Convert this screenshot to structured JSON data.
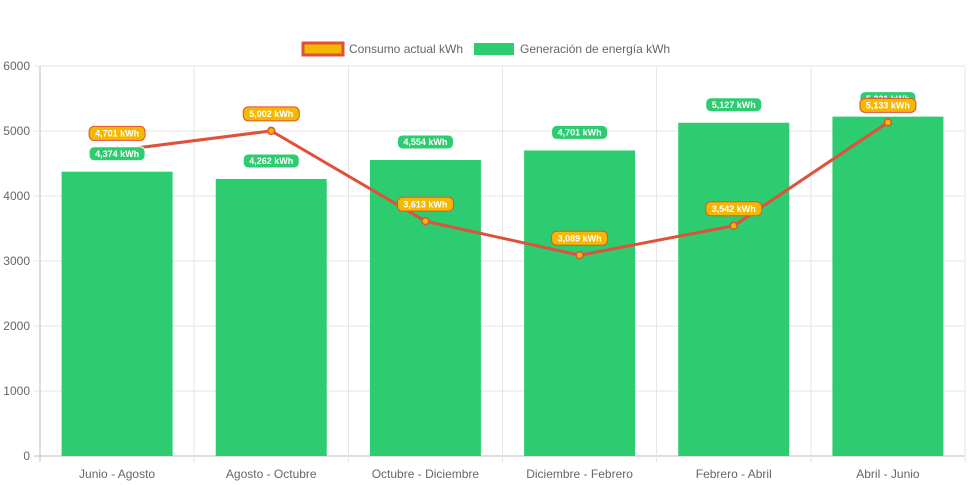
{
  "chart_data": {
    "type": "bar",
    "categories": [
      "Junio - Agosto",
      "Agosto - Octubre",
      "Octubre - Diciembre",
      "Diciembre - Febrero",
      "Febrero - Abril",
      "Abril - Junio"
    ],
    "series": [
      {
        "name": "Consumo actual kWh",
        "type": "line",
        "values": [
          4701,
          5002,
          3613,
          3089,
          3542,
          5133
        ],
        "labels": [
          "4,701 kWh",
          "5,002 kWh",
          "3,613 kWh",
          "3,089 kWh",
          "3,542 kWh",
          "5,133 kWh"
        ],
        "color": "#e0503a",
        "label_bg": "#f5b800"
      },
      {
        "name": "Generación de energía kWh",
        "type": "bar",
        "values": [
          4374,
          4262,
          4554,
          4701,
          5127,
          5221
        ],
        "labels": [
          "4,374 kWh",
          "4,262 kWh",
          "4,554 kWh",
          "4,701 kWh",
          "5,127 kWh",
          "5,221 kWh"
        ],
        "color": "#2ecc71"
      }
    ],
    "y_ticks": [
      "0",
      "1000",
      "2000",
      "3000",
      "4000",
      "5000",
      "6000"
    ],
    "ylim": [
      0,
      6000
    ],
    "grid": true,
    "legend_position": "top-center",
    "title": "",
    "xlabel": "",
    "ylabel": ""
  }
}
